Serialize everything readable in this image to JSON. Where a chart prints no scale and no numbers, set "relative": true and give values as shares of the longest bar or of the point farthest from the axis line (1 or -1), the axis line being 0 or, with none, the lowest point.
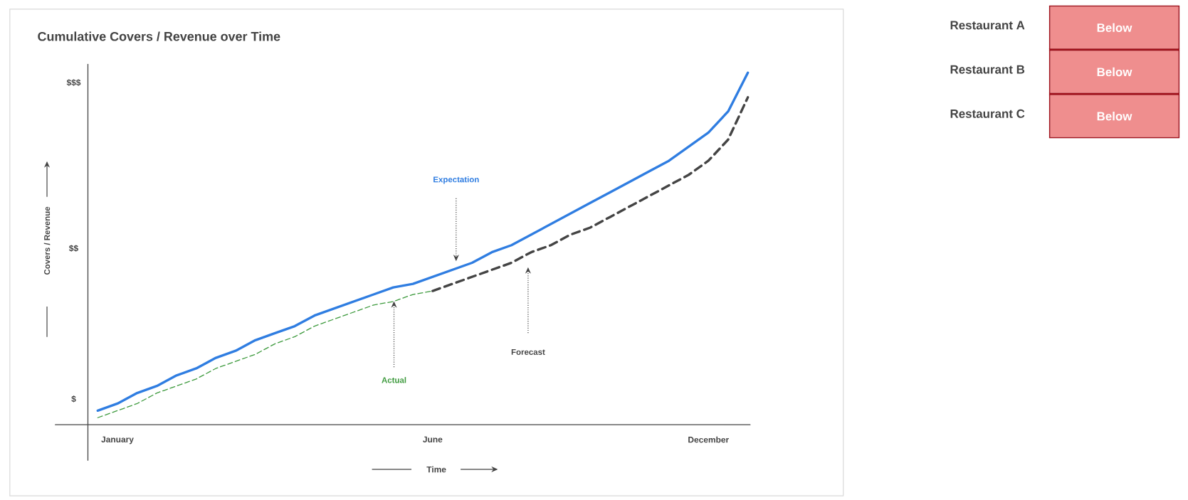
{
  "chart_data": [
    {
      "type": "line",
      "title": "Cumulative Covers / Revenue over Time",
      "xlabel": "Time",
      "ylabel": "Covers / Revenue",
      "relative": true,
      "categories": [
        null,
        "January",
        null,
        null,
        null,
        null,
        null,
        null,
        null,
        null,
        null,
        null,
        null,
        null,
        null,
        null,
        null,
        "June",
        null,
        null,
        null,
        null,
        null,
        null,
        null,
        null,
        null,
        null,
        null,
        null,
        null,
        "December",
        null,
        null
      ],
      "series": [
        {
          "name": "Expectation",
          "color": "#2f7de1",
          "line_style": "solid",
          "values": [
            0.04,
            0.06,
            0.09,
            0.11,
            0.14,
            0.16,
            0.19,
            0.21,
            0.24,
            0.26,
            0.28,
            0.31,
            0.33,
            0.35,
            0.37,
            0.39,
            0.4,
            0.42,
            0.44,
            0.46,
            0.49,
            0.51,
            0.54,
            0.57,
            0.6,
            0.63,
            0.66,
            0.69,
            0.72,
            0.75,
            0.79,
            0.83,
            0.89,
            1
          ]
        },
        {
          "name": "Actual",
          "color": "#3d9a3d",
          "line_style": "dashed",
          "values": [
            0.02,
            0.04,
            0.06,
            0.09,
            0.11,
            0.13,
            0.16,
            0.18,
            0.2,
            0.23,
            0.25,
            0.28,
            0.3,
            0.32,
            0.34,
            0.35,
            0.37,
            0.38,
            null,
            null,
            null,
            null,
            null,
            null,
            null,
            null,
            null,
            null,
            null,
            null,
            null,
            null,
            null,
            null
          ]
        },
        {
          "name": "Forecast",
          "color": "#444444",
          "line_style": "dashed",
          "values": [
            null,
            null,
            null,
            null,
            null,
            null,
            null,
            null,
            null,
            null,
            null,
            null,
            null,
            null,
            null,
            null,
            null,
            0.38,
            0.4,
            0.42,
            0.44,
            0.46,
            0.49,
            0.51,
            0.54,
            0.56,
            0.59,
            0.62,
            0.65,
            0.68,
            0.71,
            0.75,
            0.81,
            0.93
          ]
        }
      ],
      "annotations": [
        "$",
        "$$",
        "$$$"
      ]
    },
    {
      "type": "other",
      "categories": [
        "Restaurant A",
        "Restaurant B",
        "Restaurant C"
      ],
      "annotations": [
        "Below",
        "Below",
        "Below"
      ],
      "color": "#ef8e8e"
    }
  ]
}
